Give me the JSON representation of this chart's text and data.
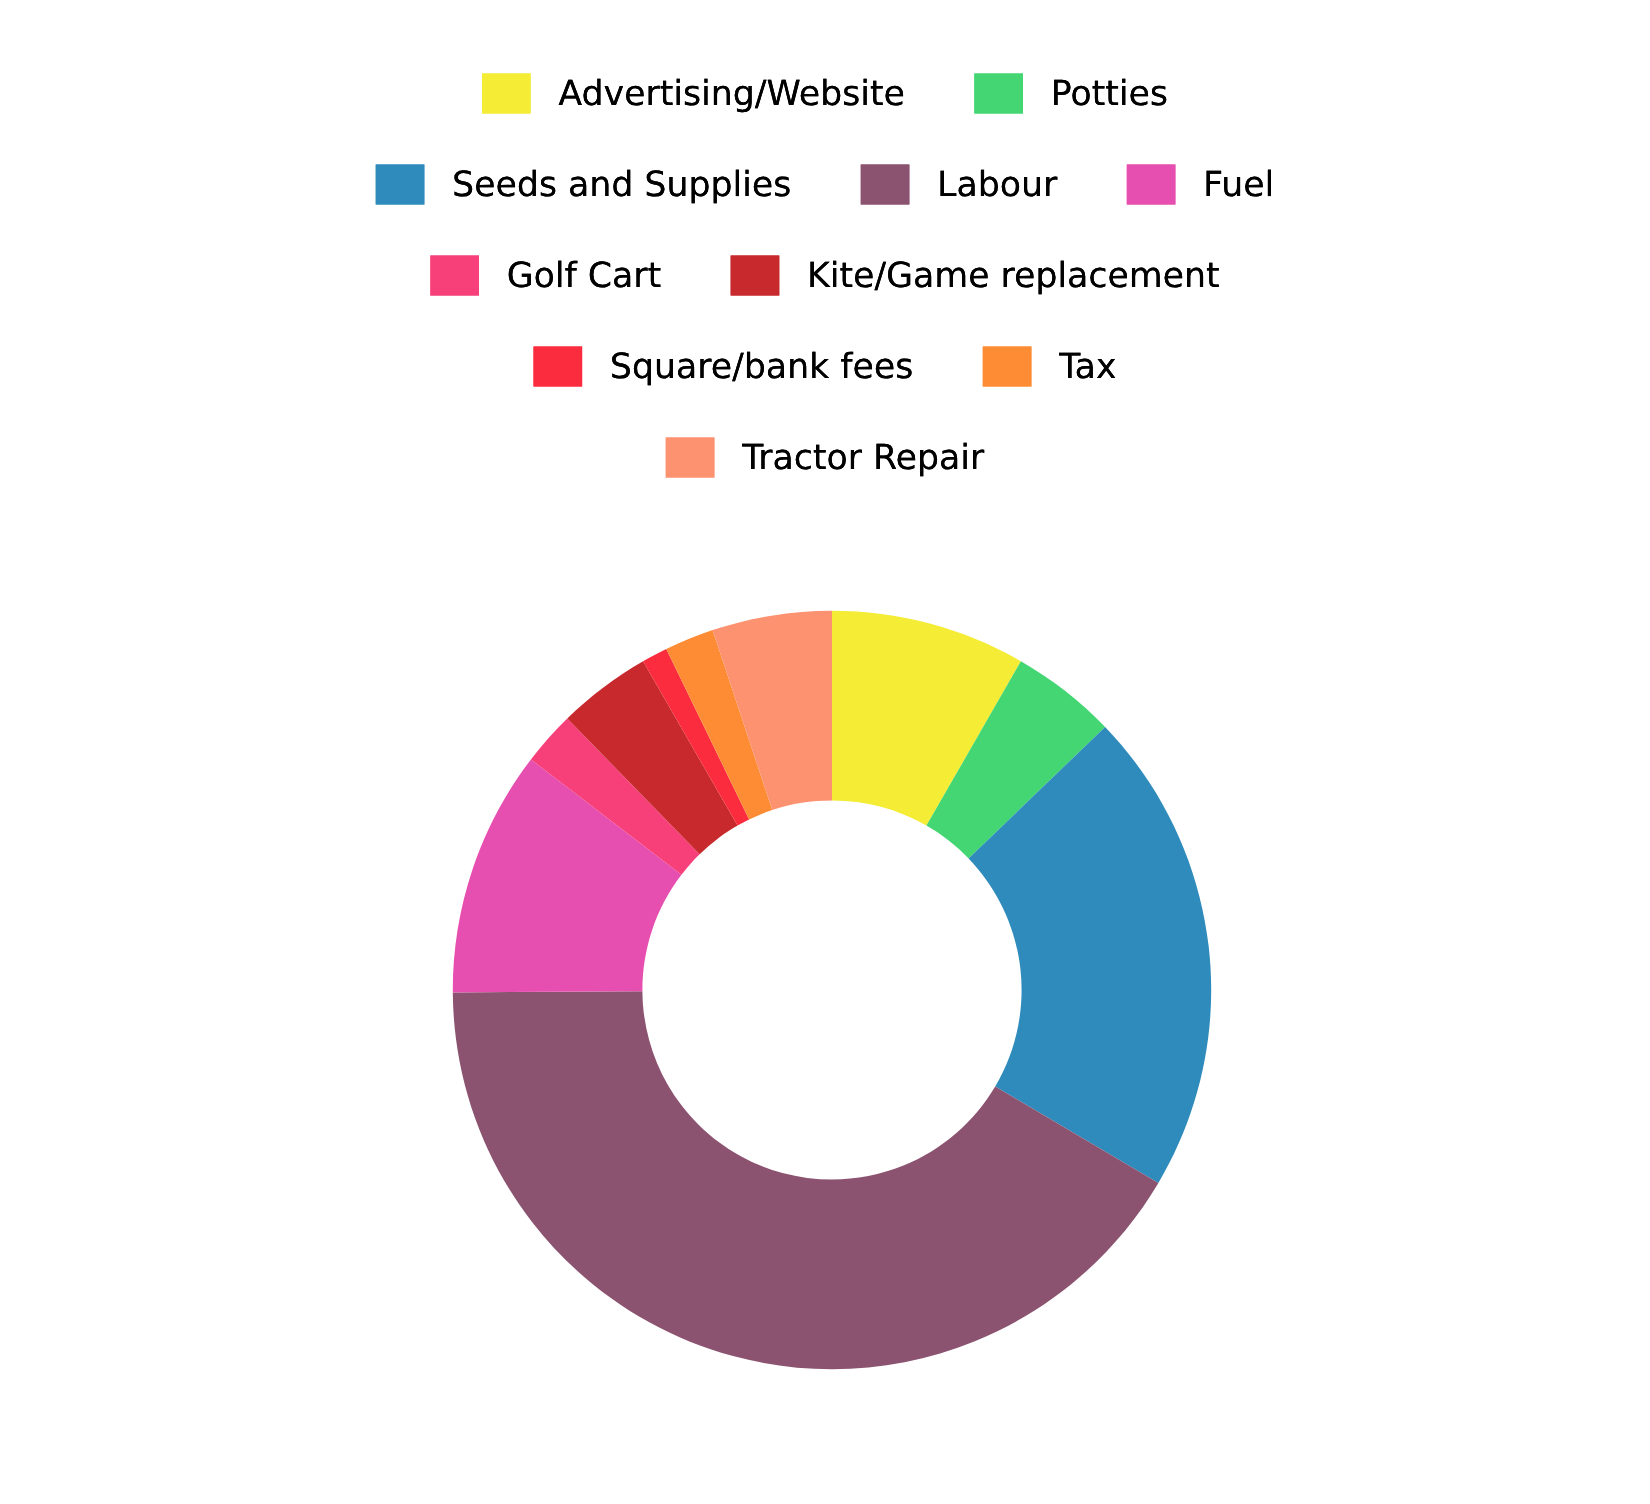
{
  "chart_data": {
    "type": "donut",
    "categories": [
      "Advertising/Website",
      "Potties",
      "Seeds and Supplies",
      "Labour",
      "Fuel",
      "Golf Cart",
      "Kite/Game replacement",
      "Square/bank fees",
      "Tax",
      "Tractor Repair"
    ],
    "values": [
      8.3,
      4.5,
      20.7,
      41.4,
      10.5,
      2.3,
      4.0,
      1.1,
      2.1,
      5.1
    ],
    "colors": [
      "#f4ec35",
      "#43d673",
      "#2e8bbb",
      "#8b5370",
      "#e64fb0",
      "#f7407a",
      "#c8292d",
      "#fb2c3d",
      "#fd8c34",
      "#fd9271"
    ],
    "legend": "top"
  }
}
